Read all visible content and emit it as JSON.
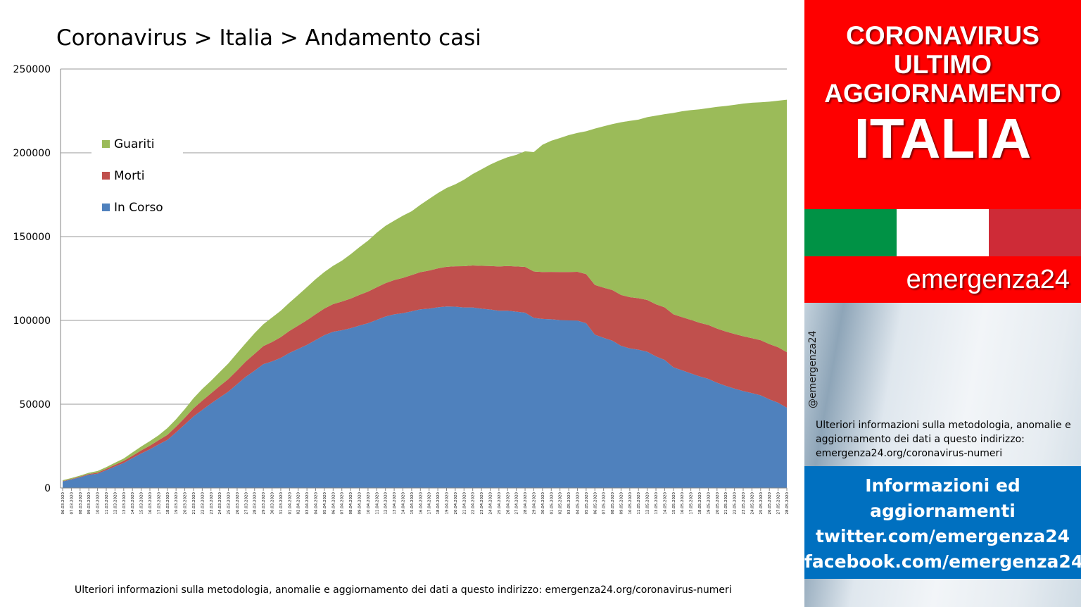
{
  "chart_data": {
    "type": "area",
    "stacked": true,
    "title": "Coronavirus > Italia > Andamento casi",
    "ylim": [
      0,
      250000
    ],
    "yticks": [
      0,
      50000,
      100000,
      150000,
      200000,
      250000
    ],
    "ytick_labels": [
      "0",
      "50000",
      "100000",
      "150000",
      "200000",
      "250000"
    ],
    "grid": true,
    "legend_position": "top-left",
    "x": [
      "06.03.2020",
      "07.03.2020",
      "08.03.2020",
      "09.03.2020",
      "10.03.2020",
      "11.03.2020",
      "12.03.2020",
      "13.03.2020",
      "14.03.2020",
      "15.03.2020",
      "16.03.2020",
      "17.03.2020",
      "18.03.2020",
      "19.03.2020",
      "20.03.2020",
      "21.03.2020",
      "22.03.2020",
      "23.03.2020",
      "24.03.2020",
      "25.03.2020",
      "26.03.2020",
      "27.03.2020",
      "28.03.2020",
      "29.03.2020",
      "30.03.2020",
      "31.03.2020",
      "01.04.2020",
      "02.04.2020",
      "03.04.2020",
      "04.04.2020",
      "05.04.2020",
      "06.04.2020",
      "07.04.2020",
      "08.04.2020",
      "09.04.2020",
      "10.04.2020",
      "11.04.2020",
      "12.04.2020",
      "13.04.2020",
      "14.04.2020",
      "15.04.2020",
      "16.04.2020",
      "17.04.2020",
      "18.04.2020",
      "19.04.2020",
      "20.04.2020",
      "21.04.2020",
      "22.04.2020",
      "23.04.2020",
      "24.04.2020",
      "25.04.2020",
      "26.04.2020",
      "27.04.2020",
      "28.04.2020",
      "29.04.2020",
      "30.04.2020",
      "01.05.2020",
      "02.05.2020",
      "03.05.2020",
      "04.05.2020",
      "05.05.2020",
      "06.05.2020",
      "07.05.2020",
      "08.05.2020",
      "09.05.2020",
      "10.05.2020",
      "11.05.2020",
      "12.05.2020",
      "13.05.2020",
      "14.05.2020",
      "15.05.2020",
      "16.05.2020",
      "17.05.2020",
      "18.05.2020",
      "19.05.2020",
      "20.05.2020",
      "21.05.2020",
      "22.05.2020",
      "23.05.2020",
      "24.05.2020",
      "25.05.2020",
      "26.05.2020",
      "27.05.2020",
      "28.05.2020"
    ],
    "series": [
      {
        "name": "In Corso",
        "color": "#4f81bd",
        "values": [
          3900,
          5100,
          6400,
          7900,
          8500,
          10600,
          12800,
          14900,
          17800,
          20600,
          23100,
          26000,
          28700,
          33200,
          37900,
          42700,
          46600,
          50400,
          54000,
          57500,
          62000,
          66400,
          70000,
          73900,
          75500,
          77600,
          80600,
          83000,
          85400,
          88300,
          91200,
          93200,
          94100,
          95300,
          96900,
          98300,
          100300,
          102300,
          103600,
          104300,
          105400,
          106600,
          107000,
          107800,
          108300,
          108200,
          107700,
          107700,
          107000,
          106500,
          105800,
          105800,
          105200,
          104600,
          101500,
          100900,
          100700,
          100200,
          100000,
          99900,
          98300,
          91500,
          89600,
          87900,
          84800,
          83300,
          82500,
          81300,
          78500,
          76400,
          72000,
          70200,
          68400,
          66600,
          65100,
          62800,
          60900,
          59300,
          57800,
          56600,
          55300,
          52900,
          50900,
          47900
        ]
      },
      {
        "name": "Morti",
        "color": "#c0504d",
        "values": [
          197,
          233,
          366,
          463,
          631,
          827,
          1016,
          1266,
          1441,
          1809,
          2158,
          2503,
          2978,
          3405,
          4032,
          4825,
          5476,
          6077,
          6820,
          7503,
          8165,
          9134,
          10023,
          10779,
          11591,
          12428,
          13155,
          13915,
          14681,
          15362,
          15887,
          16523,
          17127,
          17669,
          18279,
          18849,
          19468,
          19899,
          20465,
          21067,
          21645,
          22170,
          22745,
          23227,
          23660,
          24114,
          24648,
          25085,
          25549,
          25969,
          26384,
          26644,
          26977,
          27359,
          27682,
          27967,
          28236,
          28710,
          28884,
          29079,
          29315,
          29684,
          29958,
          30201,
          30395,
          30560,
          30739,
          30911,
          31106,
          31368,
          31610,
          31763,
          31908,
          32007,
          32169,
          32330,
          32486,
          32616,
          32735,
          32785,
          32877,
          32955,
          33072,
          33142
        ]
      },
      {
        "name": "Guariti",
        "color": "#9bbb59",
        "values": [
          523,
          589,
          622,
          724,
          1004,
          1045,
          1258,
          1439,
          1966,
          2335,
          2749,
          2941,
          4025,
          4440,
          5129,
          6072,
          7024,
          7432,
          8326,
          9362,
          10361,
          10950,
          12384,
          13030,
          14620,
          15729,
          16847,
          18278,
          19758,
          20996,
          21815,
          22837,
          24392,
          26491,
          28470,
          30455,
          32534,
          34211,
          35435,
          37130,
          38092,
          40164,
          42727,
          44927,
          47055,
          48877,
          51600,
          54543,
          57576,
          60498,
          63120,
          64928,
          66624,
          68941,
          71252,
          75945,
          78249,
          79914,
          81654,
          82879,
          85231,
          93245,
          96276,
          99023,
          103031,
          105186,
          106587,
          109039,
          112541,
          115288,
          120205,
          122810,
          125176,
          127326,
          129401,
          132282,
          134560,
          136720,
          138840,
          140479,
          141981,
          144658,
          147101,
          150604
        ]
      }
    ]
  },
  "bottom_note": "Ulteriori informazioni sulla metodologia, anomalie e aggiornamento dei dati a questo indirizzo: emergenza24.org/coronavirus-numeri",
  "sidebar": {
    "header_line1": "CORONAVIRUS",
    "header_line2": "ULTIMO",
    "header_line3": "AGGIORNAMENTO",
    "header_country": "ITALIA",
    "flag_colors": [
      "#009245",
      "#ffffff",
      "#ce2b37"
    ],
    "brand": "emergenza24",
    "handle": "@emergenza24",
    "note": "Ulteriori informazioni sulla metodologia, anomalie e aggiornamento dei dati a questo indirizzo: emergenza24.org/coronavirus-numeri",
    "info_line1": "Informazioni ed",
    "info_line2": "aggiornamenti",
    "info_line3": "twitter.com/emergenza24",
    "info_line4": "facebook.com/emergenza24"
  }
}
